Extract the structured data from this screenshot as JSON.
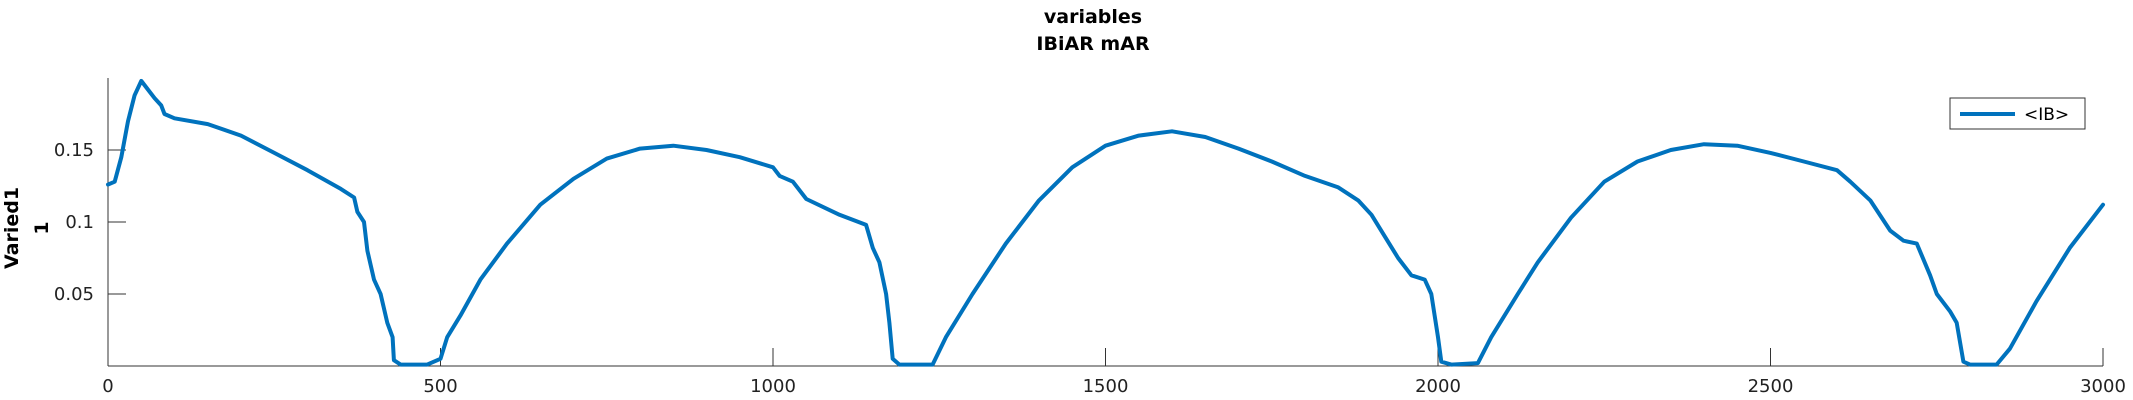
{
  "chart_data": {
    "type": "line",
    "title": [
      "variables",
      "IBiAR mAR"
    ],
    "xlabel": "",
    "ylabel": [
      "Varied1",
      "1"
    ],
    "xlim": [
      0,
      3000
    ],
    "ylim": [
      0,
      0.2
    ],
    "xticks": [
      0,
      500,
      1000,
      1500,
      2000,
      2500,
      3000
    ],
    "xtick_labels": [
      "0",
      "500",
      "1000",
      "1500",
      "2000",
      "2500",
      "3000"
    ],
    "yticks": [
      0.05,
      0.1,
      0.15
    ],
    "ytick_labels": [
      "0.05",
      "0.1",
      "0.15"
    ],
    "grid": false,
    "legend_position": "top-right",
    "series": [
      {
        "name": "<IB>",
        "color": "#0072BD",
        "points": [
          [
            0,
            0.126
          ],
          [
            10,
            0.128
          ],
          [
            20,
            0.145
          ],
          [
            30,
            0.17
          ],
          [
            40,
            0.188
          ],
          [
            50,
            0.198
          ],
          [
            60,
            0.192
          ],
          [
            70,
            0.186
          ],
          [
            80,
            0.181
          ],
          [
            85,
            0.175
          ],
          [
            100,
            0.172
          ],
          [
            150,
            0.168
          ],
          [
            200,
            0.16
          ],
          [
            250,
            0.148
          ],
          [
            300,
            0.136
          ],
          [
            350,
            0.123
          ],
          [
            370,
            0.117
          ],
          [
            375,
            0.107
          ],
          [
            385,
            0.1
          ],
          [
            390,
            0.08
          ],
          [
            400,
            0.06
          ],
          [
            410,
            0.05
          ],
          [
            420,
            0.03
          ],
          [
            428,
            0.02
          ],
          [
            430,
            0.004
          ],
          [
            440,
            0.001
          ],
          [
            480,
            0.001
          ],
          [
            500,
            0.005
          ],
          [
            510,
            0.02
          ],
          [
            530,
            0.035
          ],
          [
            560,
            0.06
          ],
          [
            600,
            0.085
          ],
          [
            650,
            0.112
          ],
          [
            700,
            0.13
          ],
          [
            750,
            0.144
          ],
          [
            800,
            0.151
          ],
          [
            850,
            0.153
          ],
          [
            900,
            0.15
          ],
          [
            950,
            0.145
          ],
          [
            1000,
            0.138
          ],
          [
            1010,
            0.132
          ],
          [
            1030,
            0.128
          ],
          [
            1050,
            0.116
          ],
          [
            1100,
            0.105
          ],
          [
            1140,
            0.098
          ],
          [
            1150,
            0.082
          ],
          [
            1160,
            0.072
          ],
          [
            1170,
            0.05
          ],
          [
            1175,
            0.03
          ],
          [
            1180,
            0.005
          ],
          [
            1190,
            0.001
          ],
          [
            1240,
            0.001
          ],
          [
            1260,
            0.02
          ],
          [
            1300,
            0.05
          ],
          [
            1350,
            0.085
          ],
          [
            1400,
            0.115
          ],
          [
            1450,
            0.138
          ],
          [
            1500,
            0.153
          ],
          [
            1550,
            0.16
          ],
          [
            1600,
            0.163
          ],
          [
            1650,
            0.159
          ],
          [
            1700,
            0.151
          ],
          [
            1750,
            0.142
          ],
          [
            1800,
            0.132
          ],
          [
            1850,
            0.124
          ],
          [
            1880,
            0.115
          ],
          [
            1900,
            0.105
          ],
          [
            1920,
            0.09
          ],
          [
            1940,
            0.075
          ],
          [
            1960,
            0.063
          ],
          [
            1980,
            0.06
          ],
          [
            1990,
            0.05
          ],
          [
            2000,
            0.02
          ],
          [
            2005,
            0.003
          ],
          [
            2020,
            0.001
          ],
          [
            2060,
            0.002
          ],
          [
            2080,
            0.02
          ],
          [
            2120,
            0.05
          ],
          [
            2150,
            0.072
          ],
          [
            2200,
            0.103
          ],
          [
            2250,
            0.128
          ],
          [
            2300,
            0.142
          ],
          [
            2350,
            0.15
          ],
          [
            2400,
            0.154
          ],
          [
            2450,
            0.153
          ],
          [
            2500,
            0.148
          ],
          [
            2550,
            0.142
          ],
          [
            2600,
            0.136
          ],
          [
            2620,
            0.128
          ],
          [
            2650,
            0.115
          ],
          [
            2680,
            0.094
          ],
          [
            2700,
            0.087
          ],
          [
            2720,
            0.085
          ],
          [
            2740,
            0.063
          ],
          [
            2750,
            0.05
          ],
          [
            2770,
            0.038
          ],
          [
            2780,
            0.03
          ],
          [
            2790,
            0.003
          ],
          [
            2800,
            0.001
          ],
          [
            2840,
            0.001
          ],
          [
            2860,
            0.012
          ],
          [
            2900,
            0.045
          ],
          [
            2950,
            0.082
          ],
          [
            3000,
            0.112
          ]
        ]
      }
    ]
  }
}
